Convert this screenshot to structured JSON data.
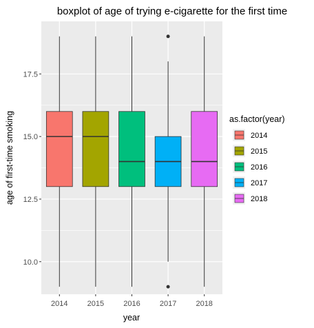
{
  "chart_data": {
    "type": "boxplot",
    "title": "boxplot of age of trying e-cigarette for the first time",
    "xlabel": "year",
    "ylabel": "age of first-time smoking",
    "categories": [
      "2014",
      "2015",
      "2016",
      "2017",
      "2018"
    ],
    "ylim": [
      8.7,
      19.6
    ],
    "yticks": [
      "10.0",
      "12.5",
      "15.0",
      "17.5"
    ],
    "grid": true,
    "legend": {
      "title": "as.factor(year)",
      "placement": "right",
      "entries": [
        "2014",
        "2015",
        "2016",
        "2017",
        "2018"
      ]
    },
    "series": [
      {
        "category": "2014",
        "min": 9,
        "q1": 13,
        "median": 15,
        "q3": 16,
        "max": 19,
        "outliers": [],
        "color": "#F8766D"
      },
      {
        "category": "2015",
        "min": 9,
        "q1": 13,
        "median": 15,
        "q3": 16,
        "max": 19,
        "outliers": [],
        "color": "#A3A500"
      },
      {
        "category": "2016",
        "min": 9,
        "q1": 13,
        "median": 14,
        "q3": 16,
        "max": 19,
        "outliers": [],
        "color": "#00BF7D"
      },
      {
        "category": "2017",
        "min": 10,
        "q1": 13,
        "median": 14,
        "q3": 15,
        "max": 18,
        "outliers": [
          9,
          19
        ],
        "color": "#00B0F6"
      },
      {
        "category": "2018",
        "min": 9,
        "q1": 13,
        "median": 14,
        "q3": 16,
        "max": 19,
        "outliers": [],
        "color": "#E76BF3"
      }
    ]
  }
}
